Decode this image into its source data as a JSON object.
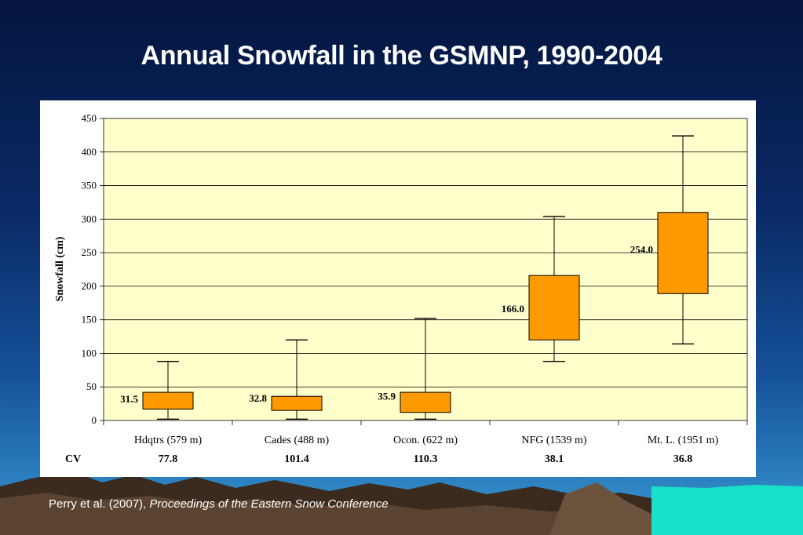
{
  "slide": {
    "title": "Annual Snowfall in the GSMNP, 1990-2004",
    "citation_authors": "Perry et al. (2007), ",
    "citation_source": "Proceedings of the Eastern Snow Conference"
  },
  "colors": {
    "plot_background": "#ffffcc",
    "box_fill": "#ff9900",
    "box_stroke": "#000000",
    "gridline": "#000000"
  },
  "chart_data": {
    "type": "boxplot",
    "title": "",
    "ylabel": "Snowfall (cm)",
    "ylim": [
      0,
      450
    ],
    "yticks": [
      0,
      50,
      100,
      150,
      200,
      250,
      300,
      350,
      400,
      450
    ],
    "grid": true,
    "categories": [
      "Hdqtrs (579 m)",
      "Cades (488 m)",
      "Ocon. (622 m)",
      "NFG (1539 m)",
      "Mt. L. (1951 m)"
    ],
    "boxes": [
      {
        "min": 2,
        "q1": 17,
        "q3": 42,
        "max": 88,
        "mean": 31.5
      },
      {
        "min": 2,
        "q1": 15,
        "q3": 36,
        "max": 120,
        "mean": 32.8
      },
      {
        "min": 2,
        "q1": 12,
        "q3": 42,
        "max": 152,
        "mean": 35.9
      },
      {
        "min": 88,
        "q1": 120,
        "q3": 216,
        "max": 304,
        "mean": 166.0
      },
      {
        "min": 114,
        "q1": 189,
        "q3": 310,
        "max": 424,
        "mean": 254.0
      }
    ],
    "mean_labels": [
      "31.5",
      "32.8",
      "35.9",
      "166.0",
      "254.0"
    ],
    "cv_label": "CV",
    "cv_values": [
      "77.8",
      "101.4",
      "110.3",
      "38.1",
      "36.8"
    ]
  }
}
